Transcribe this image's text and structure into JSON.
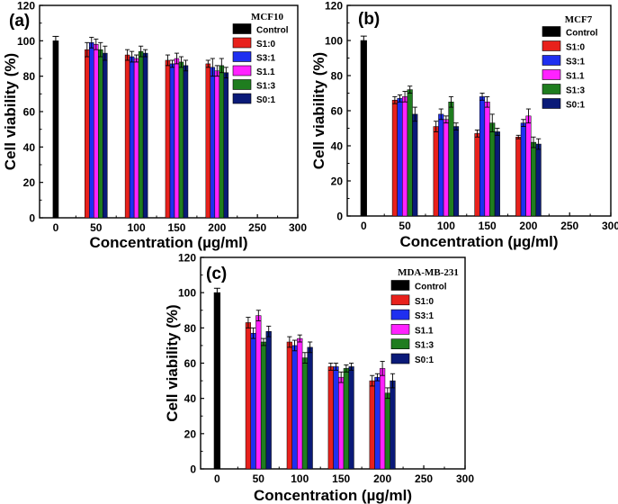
{
  "colors": {
    "Control": "#000000",
    "S1:0": "#e8211c",
    "S3:1": "#1f2ff0",
    "S1.1": "#ff22ff",
    "S1:3": "#1f7d1f",
    "S0:1": "#0a1a78"
  },
  "chart_data": [
    {
      "type": "bar",
      "panel_label": "(a)",
      "title": "MCF10",
      "xlabel": "Concentration (µg/ml)",
      "ylabel": "Cell viability (%)",
      "xlim": [
        -20,
        300
      ],
      "ylim": [
        0,
        120
      ],
      "xticks": [
        "0",
        "50",
        "100",
        "150",
        "200",
        "250",
        "300"
      ],
      "yticks": [
        "0",
        "20",
        "40",
        "60",
        "80",
        "100",
        "120"
      ],
      "control": {
        "name": "Control",
        "x": 0,
        "value": 100,
        "error": 2.5
      },
      "categories": [
        50,
        100,
        150,
        200
      ],
      "series": [
        {
          "name": "S1:0",
          "values": [
            95,
            92,
            89,
            87
          ],
          "errors": [
            4,
            3,
            3,
            2
          ]
        },
        {
          "name": "S3:1",
          "values": [
            99,
            91,
            87,
            85
          ],
          "errors": [
            3,
            3,
            2,
            5
          ]
        },
        {
          "name": "S1.1",
          "values": [
            98,
            90,
            90,
            83
          ],
          "errors": [
            3,
            2,
            3,
            3
          ]
        },
        {
          "name": "S1:3",
          "values": [
            95,
            94,
            88,
            86
          ],
          "errors": [
            4,
            3,
            3,
            4
          ]
        },
        {
          "name": "S0:1",
          "values": [
            93,
            93,
            86,
            82
          ],
          "errors": [
            4,
            2,
            3,
            3
          ]
        }
      ]
    },
    {
      "type": "bar",
      "panel_label": "(b)",
      "title": "MCF7",
      "xlabel": "Concentration (µg/ml)",
      "ylabel": "Cell viability (%)",
      "xlim": [
        -20,
        300
      ],
      "ylim": [
        0,
        120
      ],
      "xticks": [
        "0",
        "50",
        "100",
        "150",
        "200",
        "250",
        "300"
      ],
      "yticks": [
        "0",
        "20",
        "40",
        "60",
        "80",
        "100",
        "120"
      ],
      "control": {
        "name": "Control",
        "x": 0,
        "value": 100,
        "error": 2.5
      },
      "categories": [
        50,
        100,
        150,
        200
      ],
      "series": [
        {
          "name": "S1:0",
          "values": [
            66,
            51,
            47,
            45
          ],
          "errors": [
            2,
            3,
            2,
            1
          ]
        },
        {
          "name": "S3:1",
          "values": [
            67,
            58,
            68,
            53
          ],
          "errors": [
            2,
            3,
            2,
            2
          ]
        },
        {
          "name": "S1.1",
          "values": [
            68,
            55,
            65,
            57
          ],
          "errors": [
            3,
            2,
            3,
            4
          ]
        },
        {
          "name": "S1:3",
          "values": [
            72,
            65,
            53,
            42
          ],
          "errors": [
            2,
            3,
            5,
            3
          ]
        },
        {
          "name": "S0:1",
          "values": [
            58,
            51,
            48,
            41
          ],
          "errors": [
            4,
            2,
            2,
            3
          ]
        }
      ]
    },
    {
      "type": "bar",
      "panel_label": "(c)",
      "title": "MDA-MB-231",
      "xlabel": "Concentration (µg/ml)",
      "ylabel": "Cell viability (%)",
      "xlim": [
        -20,
        300
      ],
      "ylim": [
        0,
        120
      ],
      "xticks": [
        "0",
        "50",
        "100",
        "150",
        "200",
        "250",
        "300"
      ],
      "yticks": [
        "0",
        "20",
        "40",
        "60",
        "80",
        "100",
        "120"
      ],
      "control": {
        "name": "Control",
        "x": 0,
        "value": 100,
        "error": 2.5
      },
      "categories": [
        50,
        100,
        150,
        200
      ],
      "series": [
        {
          "name": "S1:0",
          "values": [
            83,
            72,
            58,
            50
          ],
          "errors": [
            3,
            3,
            2,
            3
          ]
        },
        {
          "name": "S3:1",
          "values": [
            77,
            70,
            58,
            52
          ],
          "errors": [
            3,
            3,
            2,
            2
          ]
        },
        {
          "name": "S1.1",
          "values": [
            87,
            74,
            52,
            57
          ],
          "errors": [
            3,
            2,
            3,
            4
          ]
        },
        {
          "name": "S1:3",
          "values": [
            72,
            63,
            57,
            43
          ],
          "errors": [
            2,
            3,
            2,
            3
          ]
        },
        {
          "name": "S0:1",
          "values": [
            78,
            69,
            58,
            50
          ],
          "errors": [
            3,
            3,
            2,
            4
          ]
        }
      ]
    }
  ]
}
